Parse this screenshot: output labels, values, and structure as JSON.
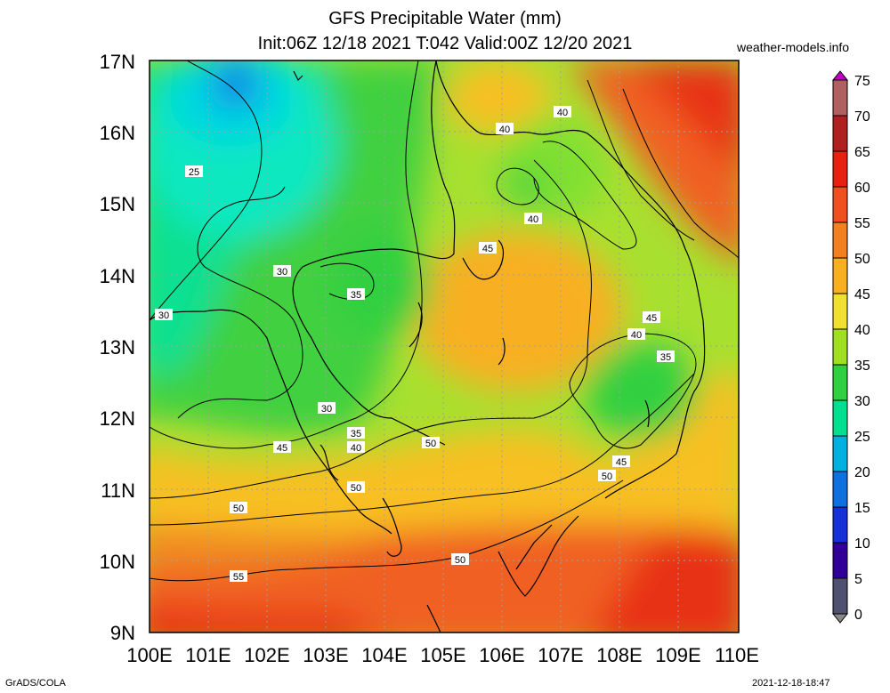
{
  "header": {
    "title": "GFS Precipitable Water (mm)",
    "subtitle": "Init:06Z 12/18 2021 T:042 Valid:00Z 12/20 2021",
    "credit": "weather-models.info"
  },
  "footer": {
    "software": "GrADS/COLA",
    "timestamp": "2021-12-18-18:47"
  },
  "map": {
    "lat_labels": [
      "17N",
      "16N",
      "15N",
      "14N",
      "13N",
      "12N",
      "11N",
      "10N",
      "9N"
    ],
    "lon_labels": [
      "100E",
      "101E",
      "102E",
      "103E",
      "104E",
      "105E",
      "106E",
      "107E",
      "108E",
      "109E",
      "110E"
    ],
    "contour_labels": [
      "25",
      "30",
      "30",
      "30",
      "35",
      "35",
      "35",
      "40",
      "40",
      "40",
      "40",
      "40",
      "45",
      "45",
      "45",
      "45",
      "50",
      "50",
      "50",
      "55"
    ]
  },
  "colorbar": {
    "labels": [
      "75",
      "70",
      "65",
      "60",
      "55",
      "50",
      "45",
      "40",
      "35",
      "30",
      "25",
      "20",
      "15",
      "10",
      "5",
      "0"
    ],
    "colors": [
      "#c000c0",
      "#b06060",
      "#b02020",
      "#e82010",
      "#f05020",
      "#f08020",
      "#f8b020",
      "#f0e030",
      "#a0e020",
      "#30d040",
      "#00e090",
      "#00b0e0",
      "#1070e0",
      "#1830d8",
      "#300098",
      "#505070",
      "#888888"
    ]
  }
}
